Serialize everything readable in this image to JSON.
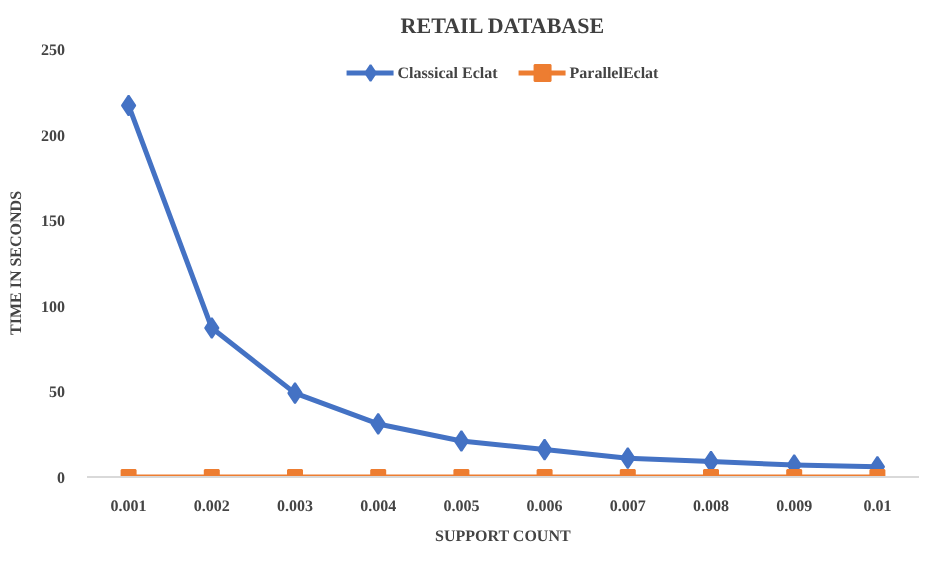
{
  "chart_data": {
    "type": "line",
    "title": "RETAIL DATABASE",
    "xlabel": "SUPPORT COUNT",
    "ylabel": "TIME IN SECONDS",
    "categories": [
      "0.001",
      "0.002",
      "0.003",
      "0.004",
      "0.005",
      "0.006",
      "0.007",
      "0.008",
      "0.009",
      "0.01"
    ],
    "series": [
      {
        "name": "Classical Eclat",
        "color": "#4472c4",
        "marker": "diamond",
        "values": [
          217,
          87,
          49,
          31,
          21,
          16,
          11,
          9,
          7,
          6
        ]
      },
      {
        "name": "ParallelEclat",
        "color": "#ed7d31",
        "marker": "square",
        "values": [
          0,
          0,
          0,
          0,
          0,
          0,
          0,
          0,
          0,
          0
        ]
      }
    ],
    "ylim": [
      0,
      250
    ],
    "yticks": [
      0,
      50,
      100,
      150,
      200,
      250
    ],
    "grid": false,
    "legend": "top"
  }
}
